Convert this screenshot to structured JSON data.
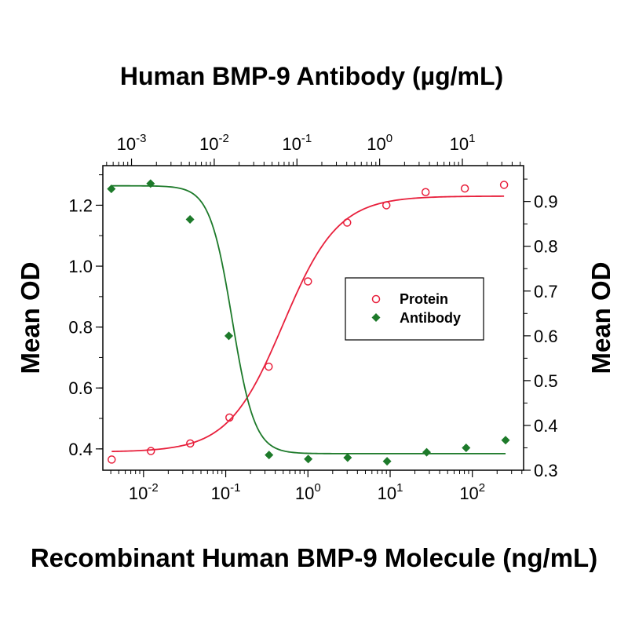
{
  "chart_data": {
    "type": "scatter",
    "title": "Human BMP-9 Antibody (µg/mL)",
    "xlabel": "Recombinant Human BMP-9 Molecule (ng/mL)",
    "ylabel": "Mean OD",
    "y2label": "Mean OD",
    "x_scale": "log",
    "x_bottom": {
      "scale": "log",
      "range": [
        0.0032,
        420
      ],
      "ticks": [
        {
          "value": 0.01,
          "base": "10",
          "exp": "-2"
        },
        {
          "value": 0.1,
          "base": "10",
          "exp": "-1"
        },
        {
          "value": 1,
          "base": "10",
          "exp": "0"
        },
        {
          "value": 10,
          "base": "10",
          "exp": "1"
        },
        {
          "value": 100,
          "base": "10",
          "exp": "2"
        }
      ]
    },
    "x_top": {
      "scale": "log",
      "range": [
        0.00045,
        55
      ],
      "ticks": [
        {
          "value": 0.001,
          "base": "10",
          "exp": "-3"
        },
        {
          "value": 0.01,
          "base": "10",
          "exp": "-2"
        },
        {
          "value": 0.1,
          "base": "10",
          "exp": "-1"
        },
        {
          "value": 1,
          "base": "10",
          "exp": "0"
        },
        {
          "value": 10,
          "base": "10",
          "exp": "1"
        }
      ]
    },
    "y_left": {
      "range": [
        0.33,
        1.33
      ],
      "ticks": [
        "0.4",
        "0.6",
        "0.8",
        "1.0",
        "1.2"
      ]
    },
    "y_right": {
      "range": [
        0.3,
        0.98
      ],
      "ticks": [
        "0.3",
        "0.4",
        "0.5",
        "0.6",
        "0.7",
        "0.8",
        "0.9"
      ]
    },
    "legend": {
      "position": "center-right"
    },
    "series": [
      {
        "name": "Protein",
        "axis": "left-bottom",
        "color": "#e8203c",
        "marker": "open-circle",
        "x": [
          0.0041,
          0.0123,
          0.037,
          0.111,
          0.333,
          1.0,
          3.0,
          9.0,
          27.0,
          81.0,
          243.0
        ],
        "y": [
          0.365,
          0.393,
          0.418,
          0.503,
          0.67,
          0.95,
          1.143,
          1.2,
          1.243,
          1.255,
          1.267
        ],
        "fit": {
          "model": "4PL",
          "bottom": 0.39,
          "top": 1.23,
          "ec50": 0.5,
          "hill": 1.3
        }
      },
      {
        "name": "Antibody",
        "axis": "right-top",
        "color": "#1d7a2a",
        "marker": "filled-diamond",
        "x": [
          0.00057,
          0.0017,
          0.0051,
          0.015,
          0.046,
          0.137,
          0.41,
          1.23,
          3.7,
          11.1,
          33.3
        ],
        "y": [
          0.928,
          0.94,
          0.86,
          0.6,
          0.334,
          0.325,
          0.328,
          0.32,
          0.34,
          0.35,
          0.367
        ],
        "fit": {
          "model": "4PL",
          "bottom": 0.337,
          "top": 0.935,
          "ec50": 0.0165,
          "hill": -3.2
        }
      }
    ]
  }
}
